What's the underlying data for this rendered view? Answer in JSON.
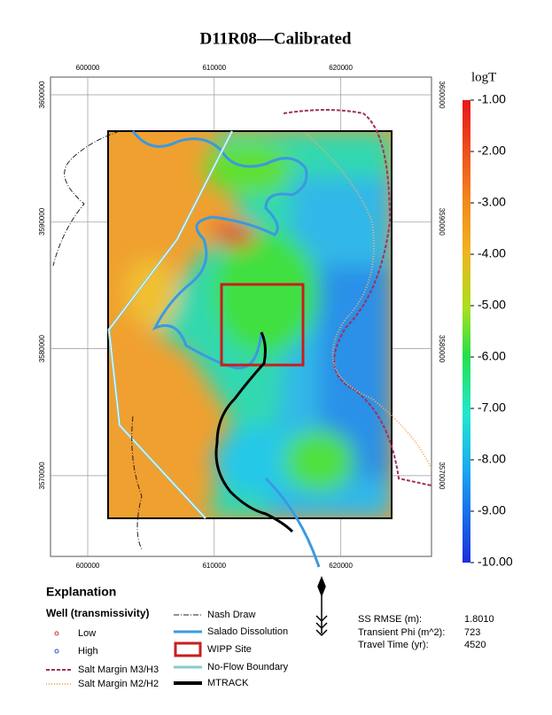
{
  "title": "D11R08—Calibrated",
  "map": {
    "x_ticks": [
      600000,
      610000,
      620000
    ],
    "y_ticks": [
      3600000,
      3590000,
      3580000,
      3570000
    ]
  },
  "colorbar": {
    "label": "logT",
    "ticks": [
      {
        "value": -1,
        "label": "-1.00"
      },
      {
        "value": -2,
        "label": "-2.00"
      },
      {
        "value": -3,
        "label": "-3.00"
      },
      {
        "value": -4,
        "label": "-4.00"
      },
      {
        "value": -5,
        "label": "-5.00"
      },
      {
        "value": -6,
        "label": "-6.00"
      },
      {
        "value": -7,
        "label": "-7.00"
      },
      {
        "value": -8,
        "label": "-8.00"
      },
      {
        "value": -9,
        "label": "-9.00"
      },
      {
        "value": -10,
        "label": "-10.00"
      }
    ]
  },
  "legend": {
    "title": "Explanation",
    "well_heading": "Well (transmissivity)",
    "items": [
      "Low",
      "High",
      "Salt Margin M3/H3",
      "Salt Margin M2/H2",
      "Nash Draw",
      "Salado Dissolution",
      "WIPP Site",
      "No-Flow Boundary",
      "MTRACK"
    ]
  },
  "stats": [
    {
      "label": "SS RMSE (m):",
      "value": "1.8010"
    },
    {
      "label": "Transient Phi (m^2):",
      "value": "723"
    },
    {
      "label": "Travel Time (yr):",
      "value": "4520"
    }
  ]
}
